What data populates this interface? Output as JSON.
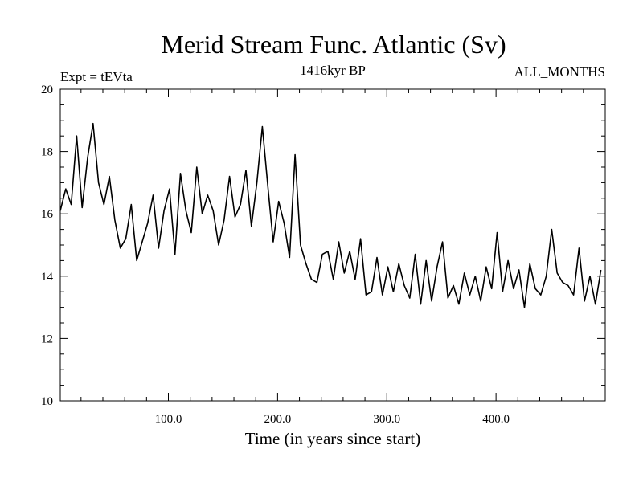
{
  "chart_data": {
    "type": "line",
    "title": "Merid Stream Func. Atlantic (Sv)",
    "subtitle_left": "Expt = tEVta",
    "subtitle_center": "1416kyr BP",
    "subtitle_right": "ALL_MONTHS",
    "xlabel": "Time (in years since start)",
    "ylabel": "",
    "xlim": [
      1,
      500
    ],
    "ylim": [
      10,
      20
    ],
    "x_ticks": [
      100,
      200,
      300,
      400
    ],
    "x_tick_labels": [
      "100.0",
      "200.0",
      "300.0",
      "400.0"
    ],
    "y_ticks": [
      10,
      12,
      14,
      16,
      18,
      20
    ],
    "y_tick_labels": [
      "10",
      "12",
      "14",
      "16",
      "18",
      "20"
    ],
    "grid": false,
    "series": [
      {
        "name": "Merid Stream Func. Atlantic",
        "x_start": 1,
        "x_step": 5,
        "values": [
          16.1,
          16.8,
          16.3,
          18.5,
          16.2,
          17.8,
          18.9,
          17.0,
          16.3,
          17.2,
          15.8,
          14.9,
          15.2,
          16.3,
          14.5,
          15.1,
          15.7,
          16.6,
          14.9,
          16.1,
          16.8,
          14.7,
          17.3,
          16.1,
          15.4,
          17.5,
          16.0,
          16.6,
          16.1,
          15.0,
          15.8,
          17.2,
          15.9,
          16.3,
          17.4,
          15.6,
          17.0,
          18.8,
          16.9,
          15.1,
          16.4,
          15.7,
          14.6,
          17.9,
          15.0,
          14.4,
          13.9,
          13.8,
          14.7,
          14.8,
          13.9,
          15.1,
          14.1,
          14.8,
          13.9,
          15.2,
          13.4,
          13.5,
          14.6,
          13.4,
          14.3,
          13.5,
          14.4,
          13.7,
          13.3,
          14.7,
          13.1,
          14.5,
          13.2,
          14.3,
          15.1,
          13.3,
          13.7,
          13.1,
          14.1,
          13.4,
          14.0,
          13.2,
          14.3,
          13.6,
          15.4,
          13.5,
          14.5,
          13.6,
          14.2,
          13.0,
          14.4,
          13.6,
          13.4,
          14.0,
          15.5,
          14.1,
          13.8,
          13.7,
          13.4,
          14.9,
          13.2,
          14.0,
          13.1,
          14.2
        ]
      }
    ]
  }
}
